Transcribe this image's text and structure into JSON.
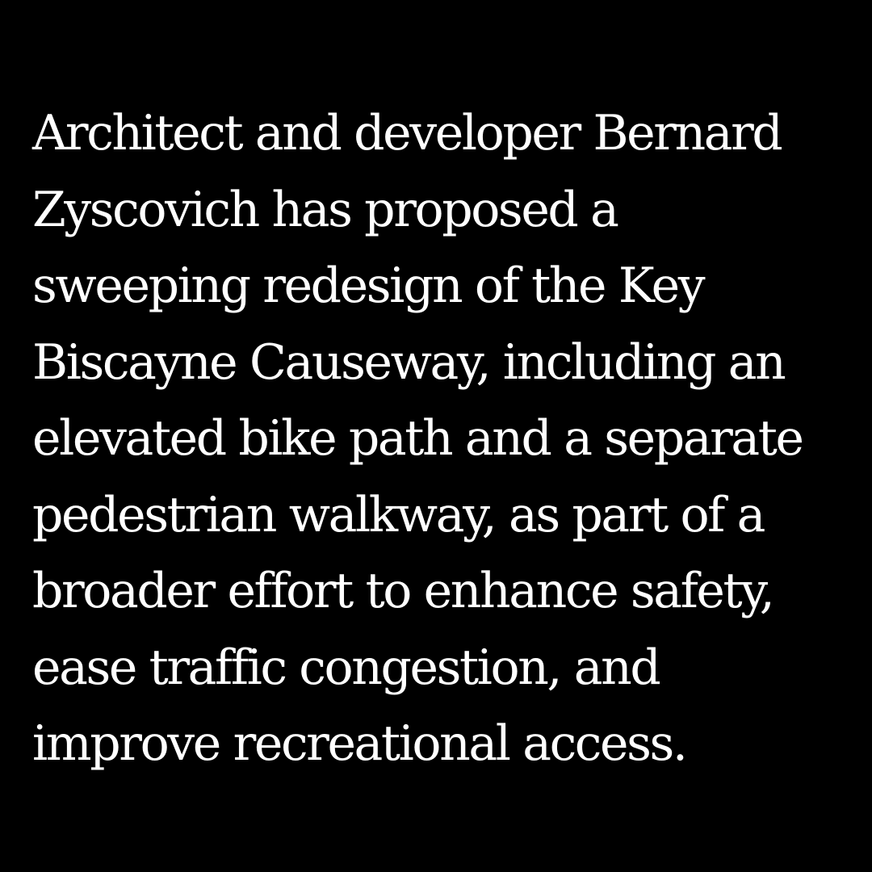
{
  "colors": {
    "background": "#000000",
    "text": "#ffffff"
  },
  "text": {
    "lines": [
      "Architect and developer Bernard",
      "Zyscovich has proposed a",
      "sweeping redesign of the Key",
      "Biscayne Causeway, including an",
      "elevated bike path and a separate",
      "pedestrian walkway, as part of a",
      "broader effort to enhance safety,",
      "ease traffic congestion, and",
      "improve recreational access."
    ]
  }
}
